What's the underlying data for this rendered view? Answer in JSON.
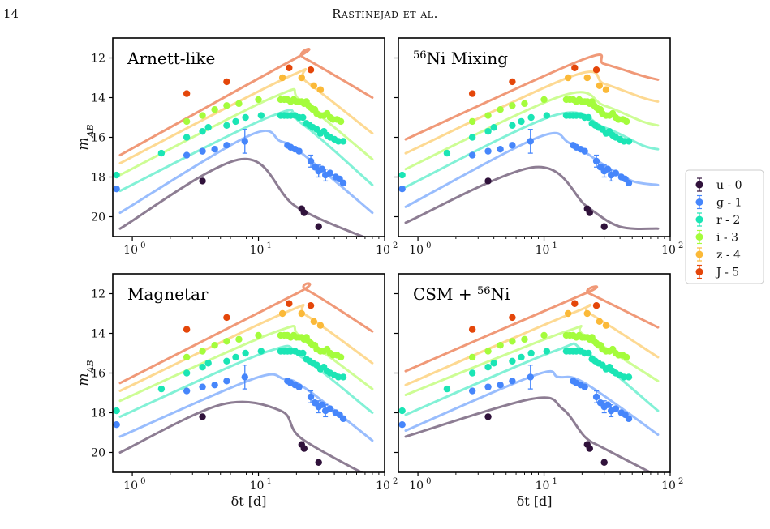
{
  "page": {
    "number": "14",
    "running_head": "Rastinejad et al."
  },
  "chart_data": {
    "type": "scatter",
    "xscale": "log",
    "xlim": [
      0.7,
      100
    ],
    "ylim": [
      21,
      11
    ],
    "yinvert": true,
    "xlabel": "δt [d]",
    "ylabel": "m_AB",
    "xticks": [
      1,
      10,
      100
    ],
    "xtick_labels": [
      "10",
      "10",
      "10"
    ],
    "xtick_exponents": [
      "0",
      "1",
      "2"
    ],
    "yticks": [
      12,
      14,
      16,
      18,
      20
    ],
    "ytick_labels": [
      "12",
      "14",
      "16",
      "18",
      "20"
    ],
    "legend": {
      "placement": "right-outside",
      "entries": [
        {
          "label": "u - 0",
          "color": "#30123b"
        },
        {
          "label": "g - 1",
          "color": "#4686fb"
        },
        {
          "label": "r - 2",
          "color": "#1be5b5"
        },
        {
          "label": "i - 3",
          "color": "#a4fc3c"
        },
        {
          "label": "z - 4",
          "color": "#fbb938"
        },
        {
          "label": "J - 5",
          "color": "#e4460a"
        }
      ]
    },
    "bands": [
      {
        "name": "u",
        "offset": 0,
        "color": "#30123b",
        "points": [
          [
            3.6,
            18.2
          ],
          [
            22,
            19.6
          ],
          [
            23,
            19.8
          ],
          [
            30,
            20.5
          ]
        ]
      },
      {
        "name": "g",
        "offset": 1,
        "color": "#4686fb",
        "points": [
          [
            0.75,
            18.6
          ],
          [
            2.7,
            16.9
          ],
          [
            3.6,
            16.7
          ],
          [
            4.5,
            16.6
          ],
          [
            5.6,
            16.4
          ],
          [
            7.8,
            16.2
          ],
          [
            17,
            16.4
          ],
          [
            18,
            16.5
          ],
          [
            19.5,
            16.6
          ],
          [
            21,
            16.7
          ],
          [
            26,
            17.2
          ],
          [
            28,
            17.5
          ],
          [
            30,
            17.7
          ],
          [
            32,
            17.6
          ],
          [
            34,
            17.9
          ],
          [
            37,
            17.8
          ],
          [
            41,
            18.0
          ],
          [
            44,
            18.1
          ],
          [
            47,
            18.3
          ]
        ],
        "errorbar_points": [
          [
            7.8,
            16.2,
            0.6
          ],
          [
            26,
            17.2,
            0.3
          ],
          [
            30,
            17.7,
            0.3
          ],
          [
            34,
            17.9,
            0.3
          ]
        ]
      },
      {
        "name": "r",
        "offset": 2,
        "color": "#1be5b5",
        "points": [
          [
            0.75,
            17.9
          ],
          [
            1.7,
            16.8
          ],
          [
            2.7,
            16.0
          ],
          [
            3.6,
            15.7
          ],
          [
            4.0,
            15.5
          ],
          [
            5.6,
            15.4
          ],
          [
            6.6,
            15.2
          ],
          [
            7.9,
            15.0
          ],
          [
            10.5,
            14.9
          ],
          [
            15,
            14.9
          ],
          [
            16,
            14.9
          ],
          [
            17,
            14.9
          ],
          [
            18,
            14.9
          ],
          [
            19.5,
            14.9
          ],
          [
            21,
            15.0
          ],
          [
            22.5,
            15.0
          ],
          [
            24,
            15.3
          ],
          [
            25.5,
            15.4
          ],
          [
            27,
            15.5
          ],
          [
            29,
            15.6
          ],
          [
            31,
            15.8
          ],
          [
            33,
            15.7
          ],
          [
            35,
            15.9
          ],
          [
            37,
            16.0
          ],
          [
            40,
            16.1
          ],
          [
            43,
            16.2
          ],
          [
            47,
            16.2
          ]
        ]
      },
      {
        "name": "i",
        "offset": 3,
        "color": "#a4fc3c",
        "points": [
          [
            2.7,
            15.2
          ],
          [
            3.6,
            14.9
          ],
          [
            4.5,
            14.6
          ],
          [
            5.6,
            14.4
          ],
          [
            7.0,
            14.3
          ],
          [
            10,
            14.1
          ],
          [
            15,
            14.1
          ],
          [
            16,
            14.1
          ],
          [
            17,
            14.1
          ],
          [
            18,
            14.2
          ],
          [
            19,
            14.1
          ],
          [
            20,
            14.2
          ],
          [
            21,
            14.2
          ],
          [
            22,
            14.2
          ],
          [
            23,
            14.3
          ],
          [
            24,
            14.2
          ],
          [
            25,
            14.4
          ],
          [
            26,
            14.5
          ],
          [
            27,
            14.6
          ],
          [
            28,
            14.6
          ],
          [
            29,
            14.8
          ],
          [
            31,
            14.9
          ],
          [
            33,
            14.9
          ],
          [
            35,
            14.8
          ],
          [
            37,
            15.0
          ],
          [
            39,
            15.1
          ],
          [
            42,
            15.1
          ],
          [
            45,
            15.2
          ]
        ]
      },
      {
        "name": "z",
        "offset": 4,
        "color": "#fbb938",
        "points": [
          [
            15.5,
            13.0
          ],
          [
            22,
            13.0
          ],
          [
            27.5,
            13.4
          ],
          [
            31,
            13.6
          ]
        ]
      },
      {
        "name": "J",
        "offset": 5,
        "color": "#e4460a",
        "points": [
          [
            2.7,
            13.8
          ],
          [
            5.6,
            13.2
          ],
          [
            17.5,
            12.5
          ],
          [
            26,
            12.6
          ]
        ]
      }
    ],
    "panels": [
      {
        "title": "Arnett-like",
        "title_sup": "",
        "models": {
          "u": [
            [
              0.8,
              20.6
            ],
            [
              7.3,
              17.1
            ],
            [
              20,
              19.5
            ],
            [
              80,
              21.2
            ]
          ],
          "g": [
            [
              0.8,
              19.8
            ],
            [
              8.5,
              15.9
            ],
            [
              15,
              16.2
            ],
            [
              22,
              16.8
            ],
            [
              80,
              19.8
            ]
          ],
          "r": [
            [
              0.8,
              18.7
            ],
            [
              13,
              14.9
            ],
            [
              22,
              15.3
            ],
            [
              80,
              18.4
            ]
          ],
          "i": [
            [
              0.8,
              17.9
            ],
            [
              14,
              13.9
            ],
            [
              22,
              14.2
            ],
            [
              80,
              17.1
            ]
          ],
          "z": [
            [
              0.8,
              17.3
            ],
            [
              18,
              12.9
            ],
            [
              24,
              13.2
            ],
            [
              80,
              15.8
            ]
          ],
          "J": [
            [
              0.8,
              16.9
            ],
            [
              20,
              12.0
            ],
            [
              23,
              12.0
            ],
            [
              80,
              14.0
            ]
          ]
        }
      },
      {
        "title": "Ni Mixing",
        "title_sup": "56",
        "models": {
          "u": [
            [
              0.8,
              20.3
            ],
            [
              8.5,
              17.5
            ],
            [
              22,
              19.5
            ],
            [
              40,
              20.5
            ],
            [
              80,
              20.6
            ]
          ],
          "g": [
            [
              0.8,
              19.5
            ],
            [
              9,
              16.0
            ],
            [
              16,
              16.3
            ],
            [
              30,
              17.4
            ],
            [
              50,
              18.2
            ],
            [
              80,
              18.4
            ]
          ],
          "r": [
            [
              0.8,
              18.5
            ],
            [
              12,
              14.9
            ],
            [
              30,
              15.5
            ],
            [
              60,
              16.4
            ],
            [
              80,
              16.6
            ]
          ],
          "i": [
            [
              0.8,
              17.6
            ],
            [
              14,
              13.9
            ],
            [
              30,
              14.4
            ],
            [
              60,
              15.2
            ],
            [
              80,
              15.4
            ]
          ],
          "z": [
            [
              0.8,
              16.8
            ],
            [
              17,
              12.9
            ],
            [
              30,
              13.3
            ],
            [
              60,
              14.0
            ],
            [
              80,
              14.2
            ]
          ],
          "J": [
            [
              0.8,
              16.1
            ],
            [
              20,
              12.1
            ],
            [
              30,
              12.3
            ],
            [
              60,
              12.9
            ],
            [
              80,
              13.1
            ]
          ]
        }
      },
      {
        "title": "Magnetar",
        "title_sup": "",
        "models": {
          "u": [
            [
              0.8,
              20.0
            ],
            [
              5,
              17.6
            ],
            [
              15,
              17.9
            ],
            [
              22,
              19.3
            ],
            [
              80,
              21.3
            ]
          ],
          "g": [
            [
              0.8,
              19.2
            ],
            [
              9,
              16.3
            ],
            [
              16,
              16.3
            ],
            [
              24,
              16.8
            ],
            [
              80,
              19.4
            ]
          ],
          "r": [
            [
              0.8,
              18.2
            ],
            [
              12,
              14.9
            ],
            [
              22,
              15.2
            ],
            [
              80,
              18.0
            ]
          ],
          "i": [
            [
              0.8,
              17.4
            ],
            [
              14,
              13.9
            ],
            [
              22,
              14.2
            ],
            [
              80,
              16.8
            ]
          ],
          "z": [
            [
              0.8,
              16.9
            ],
            [
              17,
              12.9
            ],
            [
              24,
              13.1
            ],
            [
              80,
              15.5
            ]
          ],
          "J": [
            [
              0.8,
              16.5
            ],
            [
              20,
              12.0
            ],
            [
              24,
              11.8
            ],
            [
              80,
              13.9
            ]
          ]
        }
      },
      {
        "title": "CSM + ",
        "title_sup": "56",
        "title_after": "Ni",
        "models": {
          "u": [
            [
              0.8,
              19.2
            ],
            [
              8,
              17.3
            ],
            [
              14,
              17.8
            ],
            [
              21,
              19.2
            ],
            [
              30,
              19.8
            ],
            [
              80,
              21.2
            ]
          ],
          "g": [
            [
              0.8,
              18.9
            ],
            [
              8.5,
              16.1
            ],
            [
              13,
              16.2
            ],
            [
              21,
              16.5
            ],
            [
              80,
              19.1
            ]
          ],
          "r": [
            [
              0.8,
              18.1
            ],
            [
              12,
              14.9
            ],
            [
              21,
              14.9
            ],
            [
              80,
              17.9
            ]
          ],
          "i": [
            [
              0.8,
              17.1
            ],
            [
              15,
              13.9
            ],
            [
              21,
              14.1
            ],
            [
              80,
              16.4
            ]
          ],
          "z": [
            [
              0.8,
              16.6
            ],
            [
              18,
              12.9
            ],
            [
              23,
              13.0
            ],
            [
              80,
              15.2
            ]
          ],
          "J": [
            [
              0.8,
              15.9
            ],
            [
              21,
              12.0
            ],
            [
              23,
              12.0
            ],
            [
              80,
              13.7
            ]
          ]
        }
      }
    ]
  }
}
